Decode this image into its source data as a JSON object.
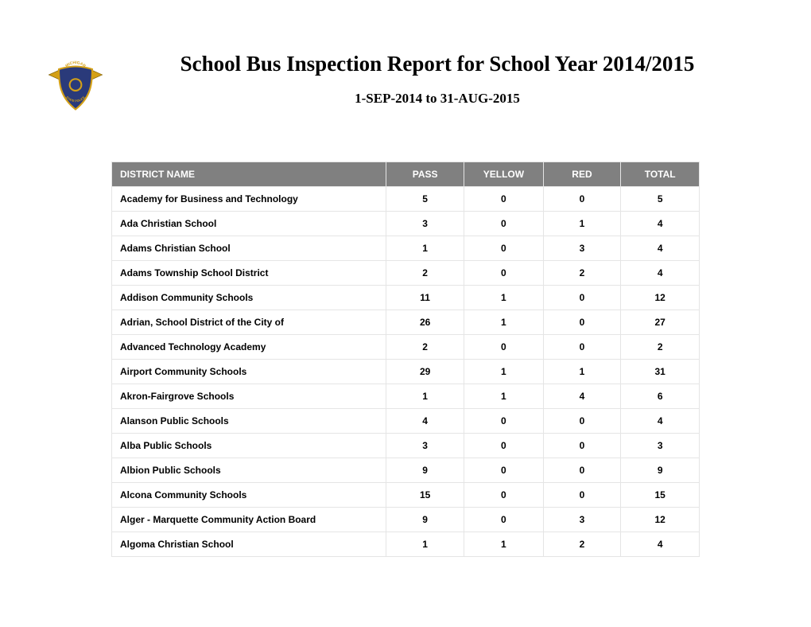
{
  "header": {
    "title": "School Bus Inspection Report for School Year 2014/2015",
    "subtitle": "1-SEP-2014 to 31-AUG-2015"
  },
  "logo": {
    "top_text": "MICHIGAN",
    "bottom_text": "STATE POLICE",
    "shield_fill": "#2a3a7a",
    "shield_stroke": "#d4a017",
    "banner_fill": "#d4a017"
  },
  "table": {
    "columns": [
      "DISTRICT NAME",
      "PASS",
      "YELLOW",
      "RED",
      "TOTAL"
    ],
    "header_bg": "#808080",
    "header_color": "#ffffff",
    "border_color": "#e5e5e5",
    "rows": [
      {
        "name": "Academy for Business and Technology",
        "pass": 5,
        "yellow": 0,
        "red": 0,
        "total": 5
      },
      {
        "name": "Ada Christian School",
        "pass": 3,
        "yellow": 0,
        "red": 1,
        "total": 4
      },
      {
        "name": "Adams Christian School",
        "pass": 1,
        "yellow": 0,
        "red": 3,
        "total": 4
      },
      {
        "name": "Adams Township School District",
        "pass": 2,
        "yellow": 0,
        "red": 2,
        "total": 4
      },
      {
        "name": "Addison Community Schools",
        "pass": 11,
        "yellow": 1,
        "red": 0,
        "total": 12
      },
      {
        "name": "Adrian, School District of the City of",
        "pass": 26,
        "yellow": 1,
        "red": 0,
        "total": 27
      },
      {
        "name": "Advanced Technology Academy",
        "pass": 2,
        "yellow": 0,
        "red": 0,
        "total": 2
      },
      {
        "name": "Airport Community Schools",
        "pass": 29,
        "yellow": 1,
        "red": 1,
        "total": 31
      },
      {
        "name": "Akron-Fairgrove Schools",
        "pass": 1,
        "yellow": 1,
        "red": 4,
        "total": 6
      },
      {
        "name": "Alanson Public Schools",
        "pass": 4,
        "yellow": 0,
        "red": 0,
        "total": 4
      },
      {
        "name": "Alba Public Schools",
        "pass": 3,
        "yellow": 0,
        "red": 0,
        "total": 3
      },
      {
        "name": "Albion Public Schools",
        "pass": 9,
        "yellow": 0,
        "red": 0,
        "total": 9
      },
      {
        "name": "Alcona Community Schools",
        "pass": 15,
        "yellow": 0,
        "red": 0,
        "total": 15
      },
      {
        "name": "Alger - Marquette Community Action Board",
        "pass": 9,
        "yellow": 0,
        "red": 3,
        "total": 12
      },
      {
        "name": "Algoma Christian School",
        "pass": 1,
        "yellow": 1,
        "red": 2,
        "total": 4
      }
    ]
  }
}
